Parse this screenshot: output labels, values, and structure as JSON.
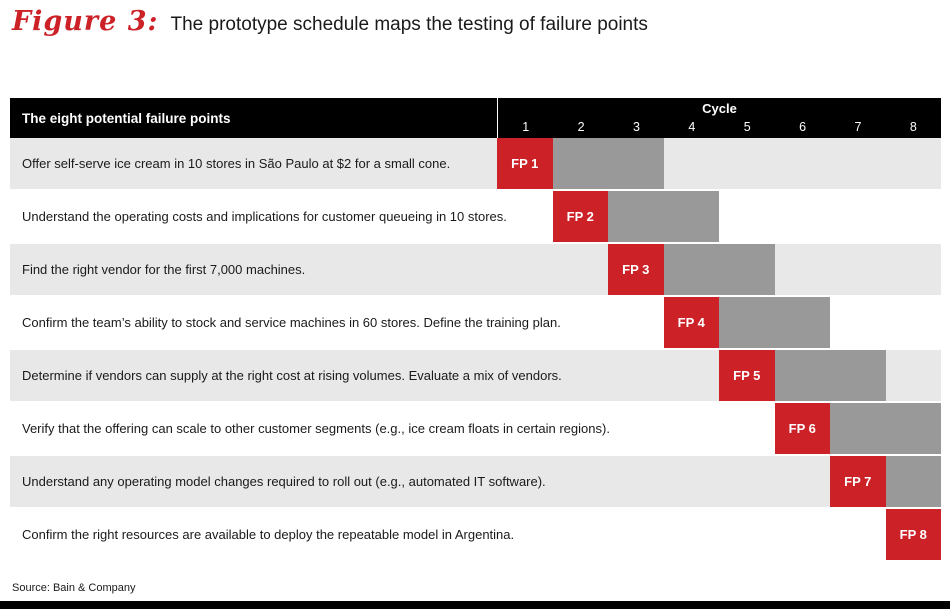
{
  "figure": {
    "label": "Figure 3:",
    "title": "The prototype schedule maps the testing of failure points"
  },
  "table": {
    "header_left": "The eight potential failure points",
    "cycle_label": "Cycle",
    "cycle_numbers": [
      "1",
      "2",
      "3",
      "4",
      "5",
      "6",
      "7",
      "8"
    ]
  },
  "chart_data": {
    "type": "bar",
    "variant": "gantt-schedule",
    "title": "The prototype schedule maps the testing of failure points",
    "x_label": "Cycle",
    "x_ticks": [
      1,
      2,
      3,
      4,
      5,
      6,
      7,
      8
    ],
    "x_range": [
      1,
      8
    ],
    "grid": false,
    "legend": false,
    "rows": [
      {
        "fp": "FP 1",
        "description": "Offer self-serve ice cream in 10 stores in São Paulo at $2 for a small cone.",
        "test_cycle": 1,
        "followup_cycles": 2
      },
      {
        "fp": "FP 2",
        "description": "Understand the operating costs and implications for customer queueing in 10 stores.",
        "test_cycle": 2,
        "followup_cycles": 2
      },
      {
        "fp": "FP 3",
        "description": "Find the right vendor for the first 7,000 machines.",
        "test_cycle": 3,
        "followup_cycles": 2
      },
      {
        "fp": "FP 4",
        "description": "Confirm the team’s ability to stock and service machines in 60 stores. Define the training plan.",
        "test_cycle": 4,
        "followup_cycles": 2
      },
      {
        "fp": "FP 5",
        "description": "Determine if vendors can supply at the right cost at rising volumes. Evaluate a mix of vendors.",
        "test_cycle": 5,
        "followup_cycles": 2
      },
      {
        "fp": "FP 6",
        "description": "Verify that the offering can scale to other customer segments (e.g., ice cream floats in certain regions).",
        "test_cycle": 6,
        "followup_cycles": 2
      },
      {
        "fp": "FP 7",
        "description": "Understand any operating model changes required to roll out (e.g., automated IT software).",
        "test_cycle": 7,
        "followup_cycles": 1
      },
      {
        "fp": "FP 8",
        "description": "Confirm the right resources are available to deploy the repeatable model in Argentina.",
        "test_cycle": 8,
        "followup_cycles": 0
      }
    ],
    "colors": {
      "test_bar": "#cc2127",
      "followup_bar": "#999999",
      "header_bg": "#000000",
      "row_alt_bg": "#e8e8e8",
      "title_accent": "#cc2127"
    }
  },
  "source": "Source: Bain & Company"
}
